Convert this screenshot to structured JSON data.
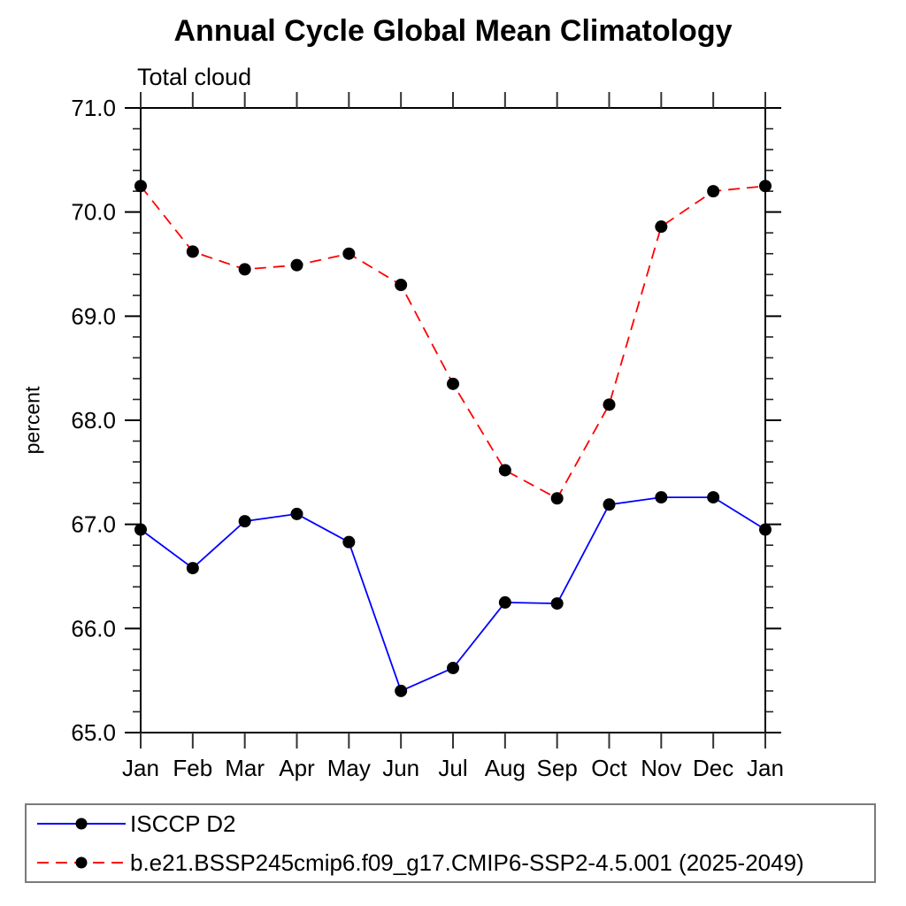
{
  "header": {
    "title": "Annual Cycle Global Mean Climatology",
    "subtitle": "Total cloud"
  },
  "chart_data": {
    "type": "line",
    "title": "Annual Cycle Global Mean Climatology",
    "subtitle": "Total cloud",
    "ylabel": "percent",
    "xlabel": "",
    "grid": false,
    "legend_position": "bottom",
    "ylim": [
      65.0,
      71.0
    ],
    "ytick_step": 1.0,
    "yminor_step": 0.2,
    "ytick_labels": [
      "65.0",
      "66.0",
      "67.0",
      "68.0",
      "69.0",
      "70.0",
      "71.0"
    ],
    "categories": [
      "Jan",
      "Feb",
      "Mar",
      "Apr",
      "May",
      "Jun",
      "Jul",
      "Aug",
      "Sep",
      "Oct",
      "Nov",
      "Dec",
      "Jan"
    ],
    "series": [
      {
        "name": "ISCCP D2",
        "color": "#0000ff",
        "style": "solid",
        "marker": "circle",
        "marker_color": "#000000",
        "values": [
          66.95,
          66.58,
          67.03,
          67.1,
          66.83,
          65.4,
          65.62,
          66.25,
          66.24,
          67.19,
          67.26,
          67.26,
          66.95
        ]
      },
      {
        "name": "b.e21.BSSP245cmip6.f09_g17.CMIP6-SSP2-4.5.001 (2025-2049)",
        "color": "#ff0000",
        "style": "dashed",
        "marker": "circle",
        "marker_color": "#000000",
        "values": [
          70.25,
          69.62,
          69.45,
          69.49,
          69.6,
          69.3,
          68.35,
          67.52,
          67.25,
          68.15,
          69.86,
          70.2,
          70.25
        ]
      }
    ]
  }
}
